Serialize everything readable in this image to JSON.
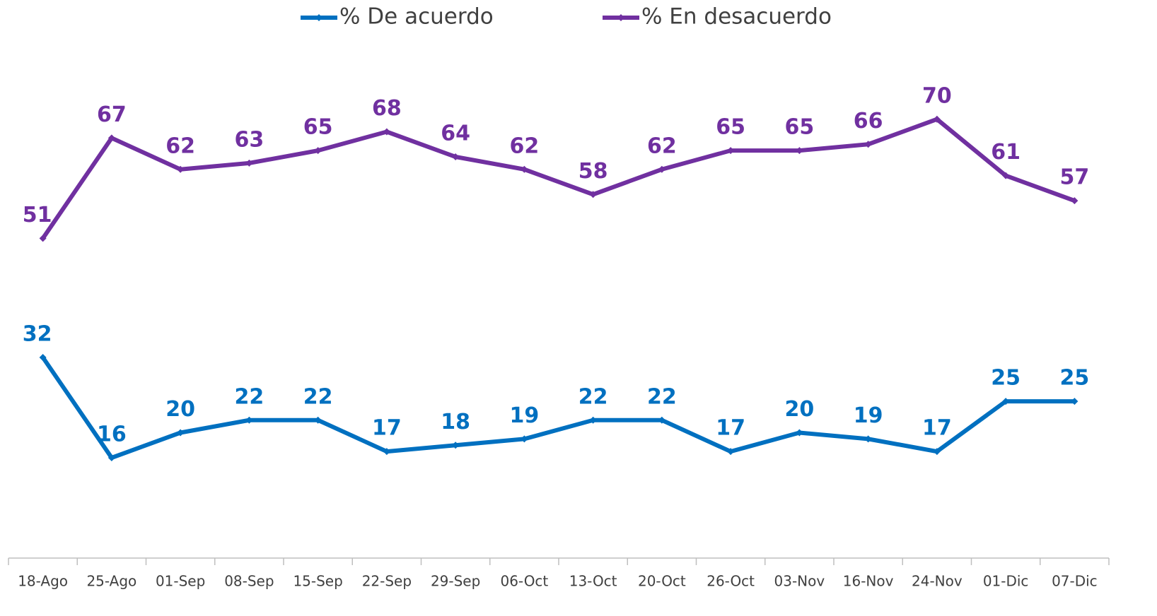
{
  "chart_data": {
    "type": "line",
    "categories": [
      "18-Ago",
      "25-Ago",
      "01-Sep",
      "08-Sep",
      "15-Sep",
      "22-Sep",
      "29-Sep",
      "06-Oct",
      "13-Oct",
      "20-Oct",
      "26-Oct",
      "03-Nov",
      "16-Nov",
      "24-Nov",
      "01-Dic",
      "07-Dic"
    ],
    "series": [
      {
        "name": "% De acuerdo",
        "color": "#0070c0",
        "values": [
          32,
          16,
          20,
          22,
          22,
          17,
          18,
          19,
          22,
          22,
          17,
          20,
          19,
          17,
          25,
          25
        ]
      },
      {
        "name": "% En desacuerdo",
        "color": "#7030a0",
        "values": [
          51,
          67,
          62,
          63,
          65,
          68,
          64,
          62,
          58,
          62,
          65,
          65,
          66,
          70,
          61,
          57
        ]
      }
    ],
    "ylim": [
      0,
      80
    ],
    "legend": "top"
  }
}
